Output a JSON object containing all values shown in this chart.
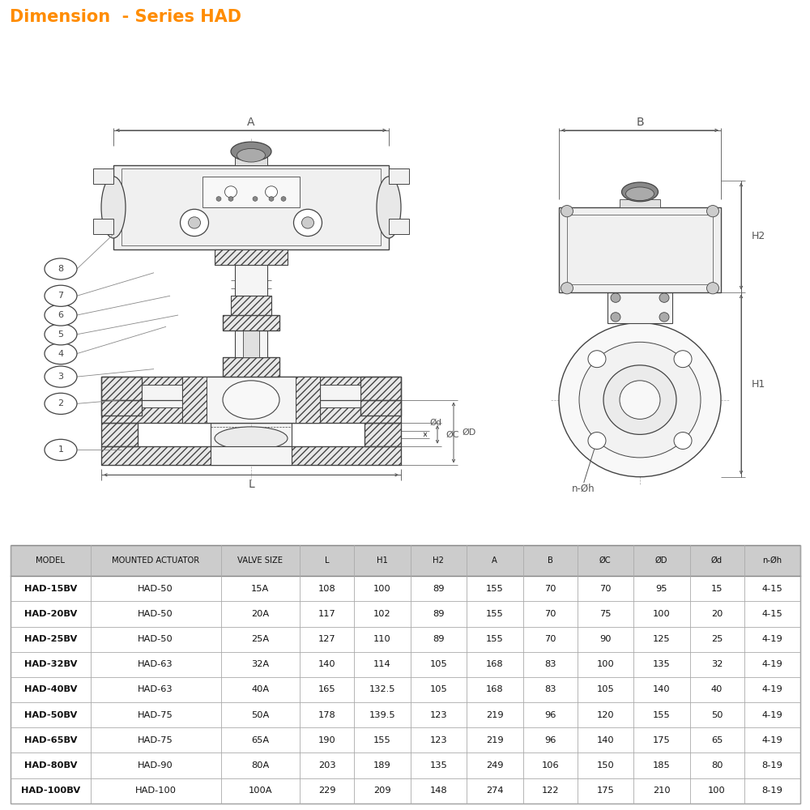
{
  "title": "Dimension  - Series HAD",
  "title_color": "#FF8C00",
  "title_bg": "#FFE0C0",
  "bg_color": "#FFFFFF",
  "table_header": [
    "MODEL",
    "MOUNTED ACTUATOR",
    "VALVE SIZE",
    "L",
    "H1",
    "H2",
    "A",
    "B",
    "ØC",
    "ØD",
    "Ød",
    "n-Øh"
  ],
  "table_rows": [
    [
      "HAD-15BV",
      "HAD-50",
      "15A",
      "108",
      "100",
      "89",
      "155",
      "70",
      "70",
      "95",
      "15",
      "4-15"
    ],
    [
      "HAD-20BV",
      "HAD-50",
      "20A",
      "117",
      "102",
      "89",
      "155",
      "70",
      "75",
      "100",
      "20",
      "4-15"
    ],
    [
      "HAD-25BV",
      "HAD-50",
      "25A",
      "127",
      "110",
      "89",
      "155",
      "70",
      "90",
      "125",
      "25",
      "4-19"
    ],
    [
      "HAD-32BV",
      "HAD-63",
      "32A",
      "140",
      "114",
      "105",
      "168",
      "83",
      "100",
      "135",
      "32",
      "4-19"
    ],
    [
      "HAD-40BV",
      "HAD-63",
      "40A",
      "165",
      "132.5",
      "105",
      "168",
      "83",
      "105",
      "140",
      "40",
      "4-19"
    ],
    [
      "HAD-50BV",
      "HAD-75",
      "50A",
      "178",
      "139.5",
      "123",
      "219",
      "96",
      "120",
      "155",
      "50",
      "4-19"
    ],
    [
      "HAD-65BV",
      "HAD-75",
      "65A",
      "190",
      "155",
      "123",
      "219",
      "96",
      "140",
      "175",
      "65",
      "4-19"
    ],
    [
      "HAD-80BV",
      "HAD-90",
      "80A",
      "203",
      "189",
      "135",
      "249",
      "106",
      "150",
      "185",
      "80",
      "8-19"
    ],
    [
      "HAD-100BV",
      "HAD-100",
      "100A",
      "229",
      "209",
      "148",
      "274",
      "122",
      "175",
      "210",
      "100",
      "8-19"
    ]
  ],
  "lc": "#444444",
  "lc_dim": "#555555",
  "hatch_fc": "#E8E8E8",
  "body_fc": "#F5F5F5",
  "actuator_fc": "#F0F0F0"
}
